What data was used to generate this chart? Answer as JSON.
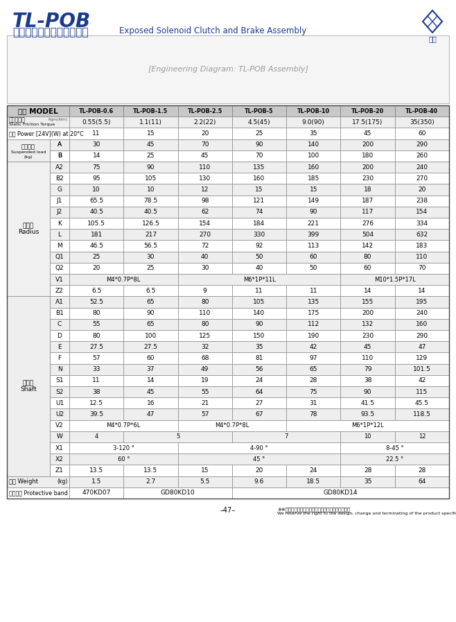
{
  "title_main": "TL-POB",
  "title_chinese": "外露式電磁離合、藞車器組",
  "title_english": "Exposed Solenoid Clutch and Brake Assembly",
  "blue_color": "#1a3a8c",
  "header_bg": "#c8c8c8",
  "border_color": "#888888",
  "models": [
    "TL-POB-0.6",
    "TL-POB-1.5",
    "TL-POB-2.5",
    "TL-POB-5",
    "TL-POB-10",
    "TL-POB-20",
    "TL-POB-40"
  ],
  "table_rows": [
    {
      "type": "torque",
      "col1": "靜摩擦轉矩",
      "col1b": "Static Friction Torque",
      "col1c": "Kgm(Nm)",
      "vals": [
        "0.55(5.5)",
        "1.1(11)",
        "2.2(22)",
        "4.5(45)",
        "9.0(90)",
        "17.5(175)",
        "35(350)"
      ]
    },
    {
      "type": "power",
      "col1": "功率 Power [24V](W) at 20°C",
      "vals": [
        "11",
        "15",
        "20",
        "25",
        "35",
        "45",
        "60"
      ]
    },
    {
      "type": "suspended_A",
      "col1g": "懸盪負荷",
      "col1g2": "Suspended load",
      "col1g3": "(kg)",
      "col2": "A",
      "vals": [
        "30",
        "45",
        "70",
        "90",
        "140",
        "200",
        "290"
      ]
    },
    {
      "type": "suspended_B",
      "col2": "B",
      "vals": [
        "14",
        "25",
        "45",
        "70",
        "100",
        "180",
        "260"
      ]
    },
    {
      "type": "radius_A2",
      "col2": "A2",
      "vals": [
        "75",
        "90",
        "110",
        "135",
        "160",
        "200",
        "240"
      ]
    },
    {
      "type": "radius_B2",
      "col2": "B2",
      "vals": [
        "95",
        "105",
        "130",
        "160",
        "185",
        "230",
        "270"
      ]
    },
    {
      "type": "radius_G",
      "col2": "G",
      "vals": [
        "10",
        "10",
        "12",
        "15",
        "15",
        "18",
        "20"
      ]
    },
    {
      "type": "radius_J1",
      "col2": "J1",
      "vals": [
        "65.5",
        "78.5",
        "98",
        "121",
        "149",
        "187",
        "238"
      ]
    },
    {
      "type": "radius_J2",
      "col2": "J2",
      "vals": [
        "40.5",
        "40.5",
        "62",
        "74",
        "90",
        "117",
        "154"
      ]
    },
    {
      "type": "radius_K",
      "col2": "K",
      "vals": [
        "105.5",
        "126.5",
        "154",
        "184",
        "221",
        "276",
        "334"
      ],
      "col1g": "徑方向",
      "col1g2": "Radius"
    },
    {
      "type": "radius_L",
      "col2": "L",
      "vals": [
        "181",
        "217",
        "270",
        "330",
        "399",
        "504",
        "632"
      ]
    },
    {
      "type": "radius_M",
      "col2": "M",
      "vals": [
        "46.5",
        "56.5",
        "72",
        "92",
        "113",
        "142",
        "183"
      ]
    },
    {
      "type": "radius_Q1",
      "col2": "Q1",
      "vals": [
        "25",
        "30",
        "40",
        "50",
        "60",
        "80",
        "110"
      ]
    },
    {
      "type": "radius_Q2",
      "col2": "Q2",
      "vals": [
        "20",
        "25",
        "30",
        "40",
        "50",
        "60",
        "70"
      ]
    },
    {
      "type": "v1",
      "col2": "V1",
      "spans": [
        [
          0,
          2,
          "M4*0.7P*8L"
        ],
        [
          2,
          3,
          "M6*1P*11L"
        ],
        [
          5,
          2,
          "M10*1.5P*17L"
        ]
      ]
    },
    {
      "type": "radius_Z2",
      "col2": "Z2",
      "vals": [
        "6.5",
        "6.5",
        "9",
        "11",
        "11",
        "14",
        "14"
      ]
    },
    {
      "type": "shaft_A1",
      "col2": "A1",
      "vals": [
        "52.5",
        "65",
        "80",
        "105",
        "135",
        "155",
        "195"
      ]
    },
    {
      "type": "shaft_B1",
      "col2": "B1",
      "vals": [
        "80",
        "90",
        "110",
        "140",
        "175",
        "200",
        "240"
      ]
    },
    {
      "type": "shaft_C",
      "col2": "C",
      "vals": [
        "55",
        "65",
        "80",
        "90",
        "112",
        "132",
        "160"
      ]
    },
    {
      "type": "shaft_D",
      "col2": "D",
      "vals": [
        "80",
        "100",
        "125",
        "150",
        "190",
        "230",
        "290"
      ]
    },
    {
      "type": "shaft_E",
      "col2": "E",
      "vals": [
        "27.5",
        "27.5",
        "32",
        "35",
        "42",
        "45",
        "47"
      ]
    },
    {
      "type": "shaft_F",
      "col2": "F",
      "vals": [
        "57",
        "60",
        "68",
        "81",
        "97",
        "110",
        "129"
      ]
    },
    {
      "type": "shaft_N",
      "col2": "N",
      "vals": [
        "33",
        "37",
        "49",
        "56",
        "65",
        "79",
        "101.5"
      ]
    },
    {
      "type": "shaft_S1",
      "col2": "S1",
      "vals": [
        "11",
        "14",
        "19",
        "24",
        "28",
        "38",
        "42"
      ],
      "col1g": "軸方向",
      "col1g2": "Shaft"
    },
    {
      "type": "shaft_S2",
      "col2": "S2",
      "vals": [
        "38",
        "45",
        "55",
        "64",
        "75",
        "90",
        "115"
      ]
    },
    {
      "type": "shaft_U1",
      "col2": "U1",
      "vals": [
        "12.5",
        "16",
        "21",
        "27",
        "31",
        "41.5",
        "45.5"
      ]
    },
    {
      "type": "shaft_U2",
      "col2": "U2",
      "vals": [
        "39.5",
        "47",
        "57",
        "67",
        "78",
        "93.5",
        "118.5"
      ]
    },
    {
      "type": "v2",
      "col2": "V2",
      "spans": [
        [
          0,
          2,
          "M4*0.7P*6L"
        ],
        [
          2,
          2,
          "M4*0.7P*8L"
        ],
        [
          4,
          3,
          "M6*1P*12L"
        ]
      ]
    },
    {
      "type": "w",
      "col2": "W",
      "spans": [
        [
          0,
          1,
          "4"
        ],
        [
          1,
          2,
          "5"
        ],
        [
          3,
          2,
          "7"
        ],
        [
          5,
          1,
          "10"
        ],
        [
          6,
          1,
          "12"
        ]
      ]
    },
    {
      "type": "x1",
      "col2": "X1",
      "spans": [
        [
          0,
          2,
          "3-120 °"
        ],
        [
          2,
          3,
          "4-90 °"
        ],
        [
          5,
          2,
          "8-45 °"
        ]
      ]
    },
    {
      "type": "x2",
      "col2": "X2",
      "spans": [
        [
          0,
          2,
          "60 °"
        ],
        [
          2,
          3,
          "45 °"
        ],
        [
          5,
          2,
          "22.5 °"
        ]
      ]
    },
    {
      "type": "shaft_Z1",
      "col2": "Z1",
      "vals": [
        "13.5",
        "13.5",
        "15",
        "20",
        "24",
        "28",
        "28"
      ]
    },
    {
      "type": "weight",
      "col1": "重量 Weight",
      "col1c": "(kg)",
      "vals": [
        "1.5",
        "2.7",
        "5.5",
        "9.6",
        "18.5",
        "35",
        "64"
      ]
    },
    {
      "type": "band",
      "col1": "保護套子 Protective band",
      "spans": [
        [
          0,
          1,
          "470KD07"
        ],
        [
          1,
          2,
          "GD80KD10"
        ],
        [
          3,
          3,
          "GD80KD14"
        ],
        [
          6,
          1,
          ""
        ]
      ]
    }
  ],
  "footer_center": "–47–",
  "footer_note1": "※本公司保留產品規格尺寸設計變更或停用之權利。",
  "footer_note2": "We reserve the right to the design, change and terminating of the product specification and size."
}
